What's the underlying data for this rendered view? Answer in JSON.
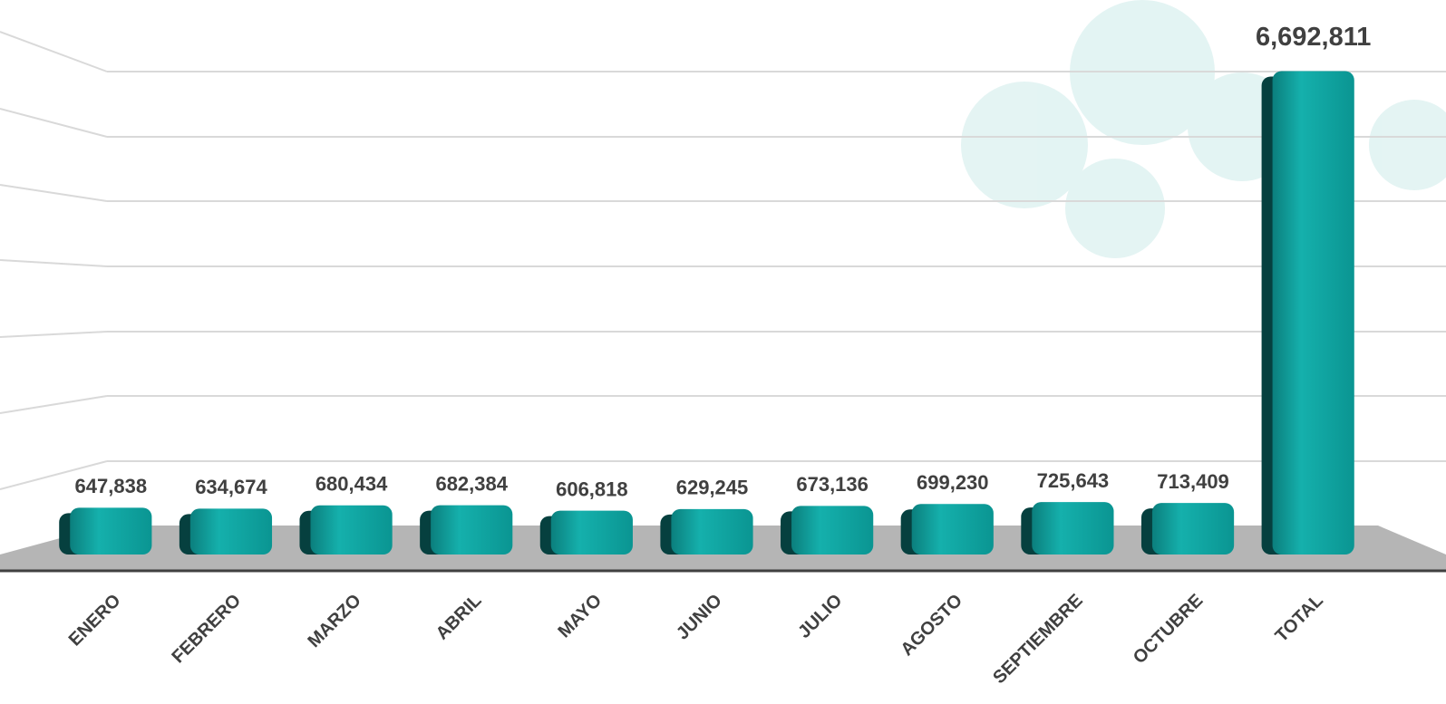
{
  "chart_data": {
    "type": "bar",
    "categories": [
      "ENERO",
      "FEBRERO",
      "MARZO",
      "ABRIL",
      "MAYO",
      "JUNIO",
      "JULIO",
      "AGOSTO",
      "SEPTIEMBRE",
      "OCTUBRE",
      "TOTAL"
    ],
    "values": [
      647838,
      634674,
      680434,
      682384,
      606818,
      629245,
      673136,
      699230,
      725643,
      713409,
      6692811
    ],
    "value_labels": [
      "647,838",
      "634,674",
      "680,434",
      "682,384",
      "606,818",
      "629,245",
      "673,136",
      "699,230",
      "725,643",
      "713,409",
      "6,692,811"
    ],
    "color": "#12a3a0",
    "ylim": [
      0,
      7000000
    ]
  }
}
